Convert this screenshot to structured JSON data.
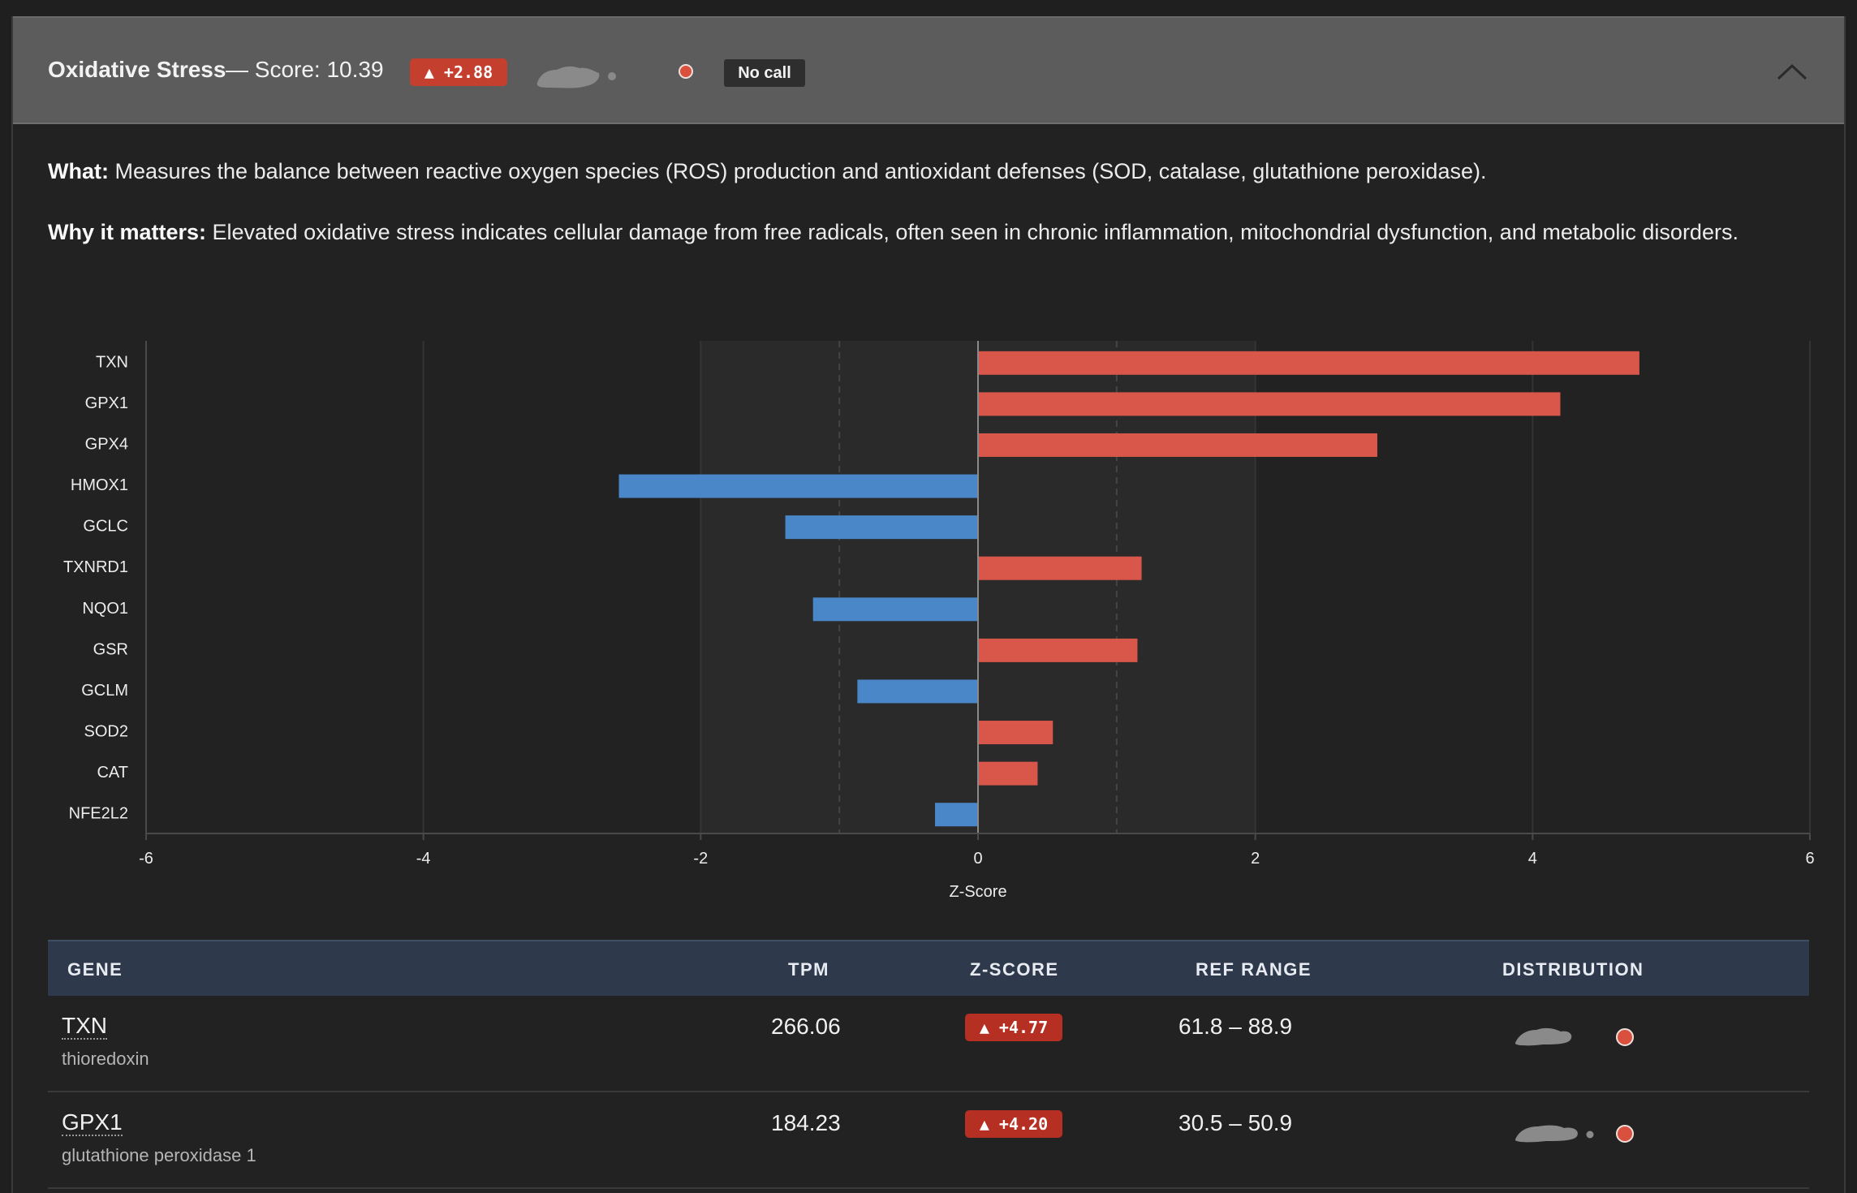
{
  "panel": {
    "title": "Oxidative Stress",
    "score_text": "— Score: 10.39",
    "zscore_badge": "▲ +2.88",
    "call_label": "No call",
    "what_label": "What:",
    "what_text": " Measures the balance between reactive oxygen species (ROS) production and antioxidant defenses (SOD, catalase, glutathione peroxidase).",
    "why_label": "Why it matters:",
    "why_text": " Elevated oxidative stress indicates cellular damage from free radicals, often seen in chronic inflammation, mitochondrial dysfunction, and metabolic disorders."
  },
  "colors": {
    "positive": "#d9574a",
    "negative": "#4a87c8",
    "header_bg": "#5c5c5c",
    "table_header_bg": "#2e3a4c"
  },
  "chart_data": {
    "type": "bar",
    "orientation": "horizontal",
    "categories": [
      "TXN",
      "GPX1",
      "GPX4",
      "HMOX1",
      "GCLC",
      "TXNRD1",
      "NQO1",
      "GSR",
      "GCLM",
      "SOD2",
      "CAT",
      "NFE2L2"
    ],
    "values": [
      4.77,
      4.2,
      2.88,
      -2.59,
      -1.39,
      1.18,
      -1.19,
      1.15,
      -0.87,
      0.54,
      0.43,
      -0.31
    ],
    "xlabel": "Z-Score",
    "ylabel": "",
    "xlim": [
      -6,
      6
    ],
    "xticks": [
      "-6",
      "-4",
      "-2",
      "0",
      "2",
      "4",
      "6"
    ],
    "tick_values": [
      -6,
      -4,
      -2,
      0,
      2,
      4,
      6
    ],
    "shaded_band": [
      -2,
      2
    ],
    "dashed_lines": [
      -1,
      1
    ],
    "grid": true
  },
  "table": {
    "headers": {
      "gene": "GENE",
      "tpm": "TPM",
      "zscore": "Z-SCORE",
      "ref_range": "REF RANGE",
      "distribution": "DISTRIBUTION"
    },
    "rows": [
      {
        "gene": "TXN",
        "description": "thioredoxin",
        "tpm": "266.06",
        "zscore": "▲ +4.77",
        "ref_range": "61.8 – 88.9"
      },
      {
        "gene": "GPX1",
        "description": "glutathione peroxidase 1",
        "tpm": "184.23",
        "zscore": "▲ +4.20",
        "ref_range": "30.5 – 50.9"
      }
    ]
  },
  "icons": {
    "collapse": "chevron-up-icon",
    "sparkline": "distribution-sparkline-icon",
    "status_dot": "status-dot-icon"
  }
}
